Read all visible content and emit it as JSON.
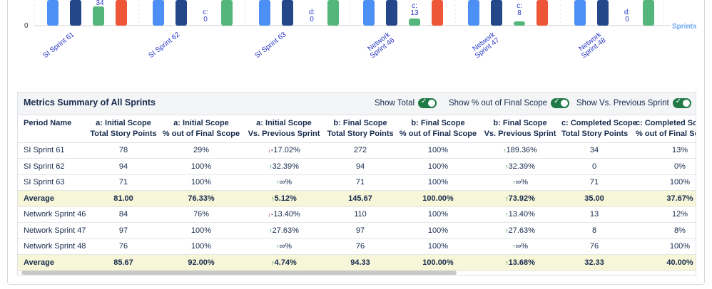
{
  "chart": {
    "zero_tick": "0",
    "x_axis_title": "Sprints",
    "sprints": [
      "SI Sprint 61",
      "SI Sprint 62",
      "SI Sprint 63",
      "Network Sprint 46",
      "Network Sprint 47",
      "Network Sprint 48"
    ],
    "c_labels": [
      "34",
      "c:",
      "d:",
      "c:",
      "c:",
      "d:"
    ],
    "c_values": [
      "",
      "0",
      "0",
      "13",
      "8",
      "0"
    ],
    "colors": {
      "a": "#4c8ff5",
      "b": "#24478a",
      "c": "#55b67c",
      "d": "#ee5638"
    }
  },
  "panel": {
    "title": "Metrics Summary of All Sprints",
    "toggles": [
      {
        "label": "Show Total"
      },
      {
        "label": "Show % out of Final Scope"
      },
      {
        "label": "Show Vs. Previous Sprint"
      }
    ]
  },
  "table": {
    "headers": [
      [
        "Period Name",
        ""
      ],
      [
        "a: Initial Scope",
        "Total Story Points"
      ],
      [
        "a: Initial Scope",
        "% out of Final Scope"
      ],
      [
        "a: Initial Scope",
        "Vs. Previous Sprint"
      ],
      [
        "b: Final Scope",
        "Total Story Points"
      ],
      [
        "b: Final Scope",
        "% out of Final Scope"
      ],
      [
        "b: Final Scope",
        "Vs. Previous Sprint"
      ],
      [
        "c: Completed Scope",
        "Total Story Points"
      ],
      [
        "c: Completed Sc",
        "% out of Final Sc"
      ]
    ],
    "rows": [
      {
        "avg": false,
        "cells": [
          "SI Sprint 61",
          "78",
          "29%",
          "-17.02%",
          "272",
          "100%",
          "189.36%",
          "34",
          "13%"
        ],
        "trend": [
          "down",
          "up"
        ]
      },
      {
        "avg": false,
        "cells": [
          "SI Sprint 62",
          "94",
          "100%",
          "32.39%",
          "94",
          "100%",
          "32.39%",
          "0",
          "0%"
        ],
        "trend": [
          "up",
          "up"
        ]
      },
      {
        "avg": false,
        "cells": [
          "SI Sprint 63",
          "71",
          "100%",
          "∞%",
          "71",
          "100%",
          "∞%",
          "71",
          "100%"
        ],
        "trend": [
          "up",
          "up"
        ]
      },
      {
        "avg": true,
        "cells": [
          "Average",
          "81.00",
          "76.33%",
          "5.12%",
          "145.67",
          "100.00%",
          "73.92%",
          "35.00",
          "37.67%"
        ],
        "trend": [
          "up",
          "up"
        ]
      },
      {
        "avg": false,
        "cells": [
          "Network Sprint 46",
          "84",
          "76%",
          "-13.40%",
          "110",
          "100%",
          "13.40%",
          "13",
          "12%"
        ],
        "trend": [
          "down",
          "up"
        ]
      },
      {
        "avg": false,
        "cells": [
          "Network Sprint 47",
          "97",
          "100%",
          "27.63%",
          "97",
          "100%",
          "27.63%",
          "8",
          "8%"
        ],
        "trend": [
          "up",
          "up"
        ]
      },
      {
        "avg": false,
        "cells": [
          "Network Sprint 48",
          "76",
          "100%",
          "∞%",
          "76",
          "100%",
          "∞%",
          "76",
          "100%"
        ],
        "trend": [
          "up",
          "up"
        ]
      },
      {
        "avg": true,
        "cells": [
          "Average",
          "85.67",
          "92.00%",
          "4.74%",
          "94.33",
          "100.00%",
          "13.68%",
          "32.33",
          "40.00%"
        ],
        "trend": [
          "up",
          "up"
        ]
      }
    ]
  }
}
